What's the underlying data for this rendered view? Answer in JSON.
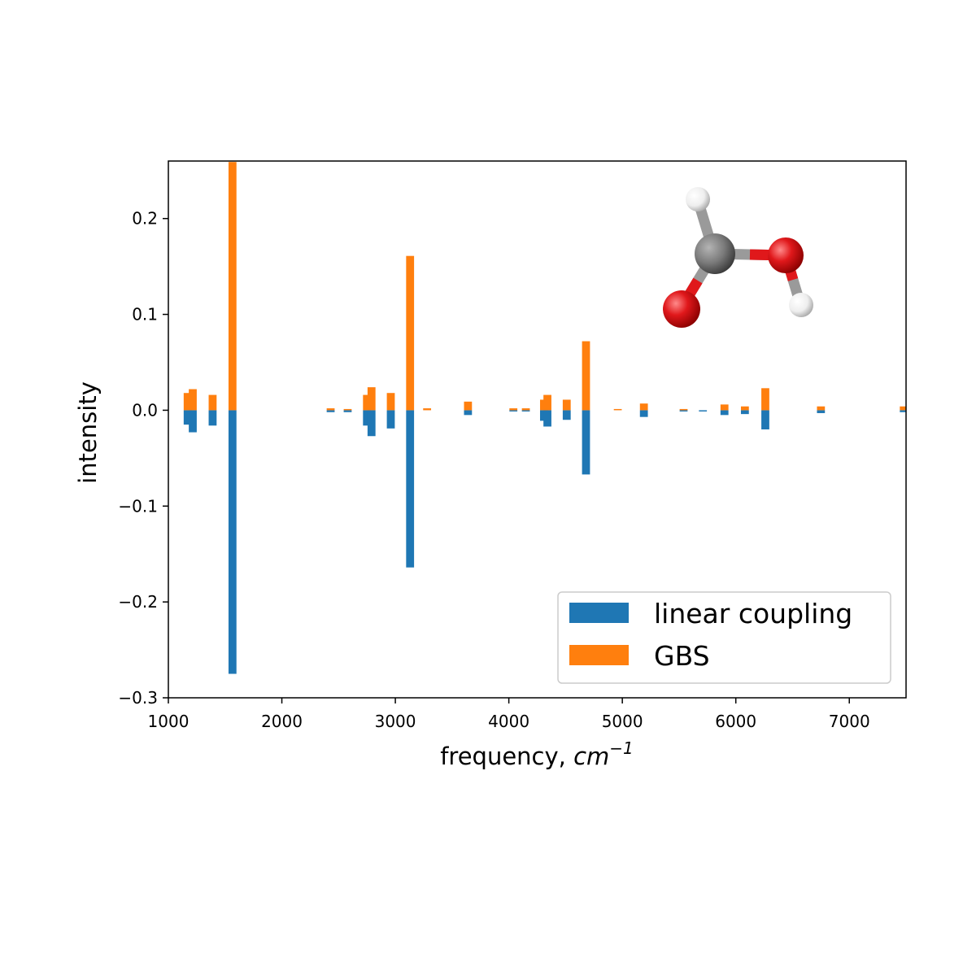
{
  "chart_data": {
    "type": "bar",
    "xlabel": "frequency, ",
    "xlabel_unit": "cm",
    "xlabel_exp": "−1",
    "ylabel": "intensity",
    "xlim": [
      1000,
      7500
    ],
    "ylim": [
      -0.3,
      0.26
    ],
    "xticks": [
      1000,
      2000,
      3000,
      4000,
      5000,
      6000,
      7000
    ],
    "xtick_labels": [
      "1000",
      "2000",
      "3000",
      "4000",
      "5000",
      "6000",
      "7000"
    ],
    "yticks": [
      -0.3,
      -0.2,
      -0.1,
      0.0,
      0.1,
      0.2
    ],
    "ytick_labels": [
      "−0.3",
      "−0.2",
      "−0.1",
      "0.0",
      "0.1",
      "0.2"
    ],
    "bar_width": 70,
    "legend_position": "lower-right",
    "grid": false,
    "series": [
      {
        "name": "linear coupling",
        "color": "#1f77b4",
        "x": [
          1170,
          1215,
          1390,
          1565,
          2430,
          2580,
          2750,
          2790,
          2960,
          3130,
          3640,
          4040,
          4150,
          4310,
          4340,
          4510,
          4680,
          5190,
          5540,
          5710,
          5900,
          6080,
          6260,
          6750,
          7480
        ],
        "values": [
          -0.015,
          -0.023,
          -0.016,
          -0.275,
          -0.002,
          -0.002,
          -0.016,
          -0.027,
          -0.019,
          -0.164,
          -0.005,
          -0.001,
          -0.001,
          -0.011,
          -0.017,
          -0.01,
          -0.067,
          -0.007,
          -0.001,
          -0.001,
          -0.005,
          -0.004,
          -0.02,
          -0.003,
          -0.002
        ]
      },
      {
        "name": "GBS",
        "color": "#ff7f0e",
        "x": [
          1170,
          1215,
          1390,
          1565,
          2430,
          2580,
          2750,
          2790,
          2960,
          3130,
          3280,
          3640,
          4040,
          4150,
          4310,
          4340,
          4510,
          4680,
          4960,
          5190,
          5540,
          5900,
          6080,
          6260,
          6750,
          7480
        ],
        "values": [
          0.018,
          0.022,
          0.016,
          0.259,
          0.002,
          0.001,
          0.016,
          0.024,
          0.018,
          0.161,
          0.002,
          0.009,
          0.002,
          0.002,
          0.011,
          0.016,
          0.011,
          0.072,
          0.001,
          0.007,
          0.001,
          0.006,
          0.004,
          0.023,
          0.004,
          0.004
        ]
      }
    ]
  },
  "molecule": {
    "atoms": [
      {
        "element": "H",
        "color": "#f2f2f2"
      },
      {
        "element": "C",
        "color": "#7a7a7a"
      },
      {
        "element": "O",
        "color": "#e0181b"
      },
      {
        "element": "O",
        "color": "#e0181b"
      },
      {
        "element": "H",
        "color": "#f2f2f2"
      }
    ]
  }
}
